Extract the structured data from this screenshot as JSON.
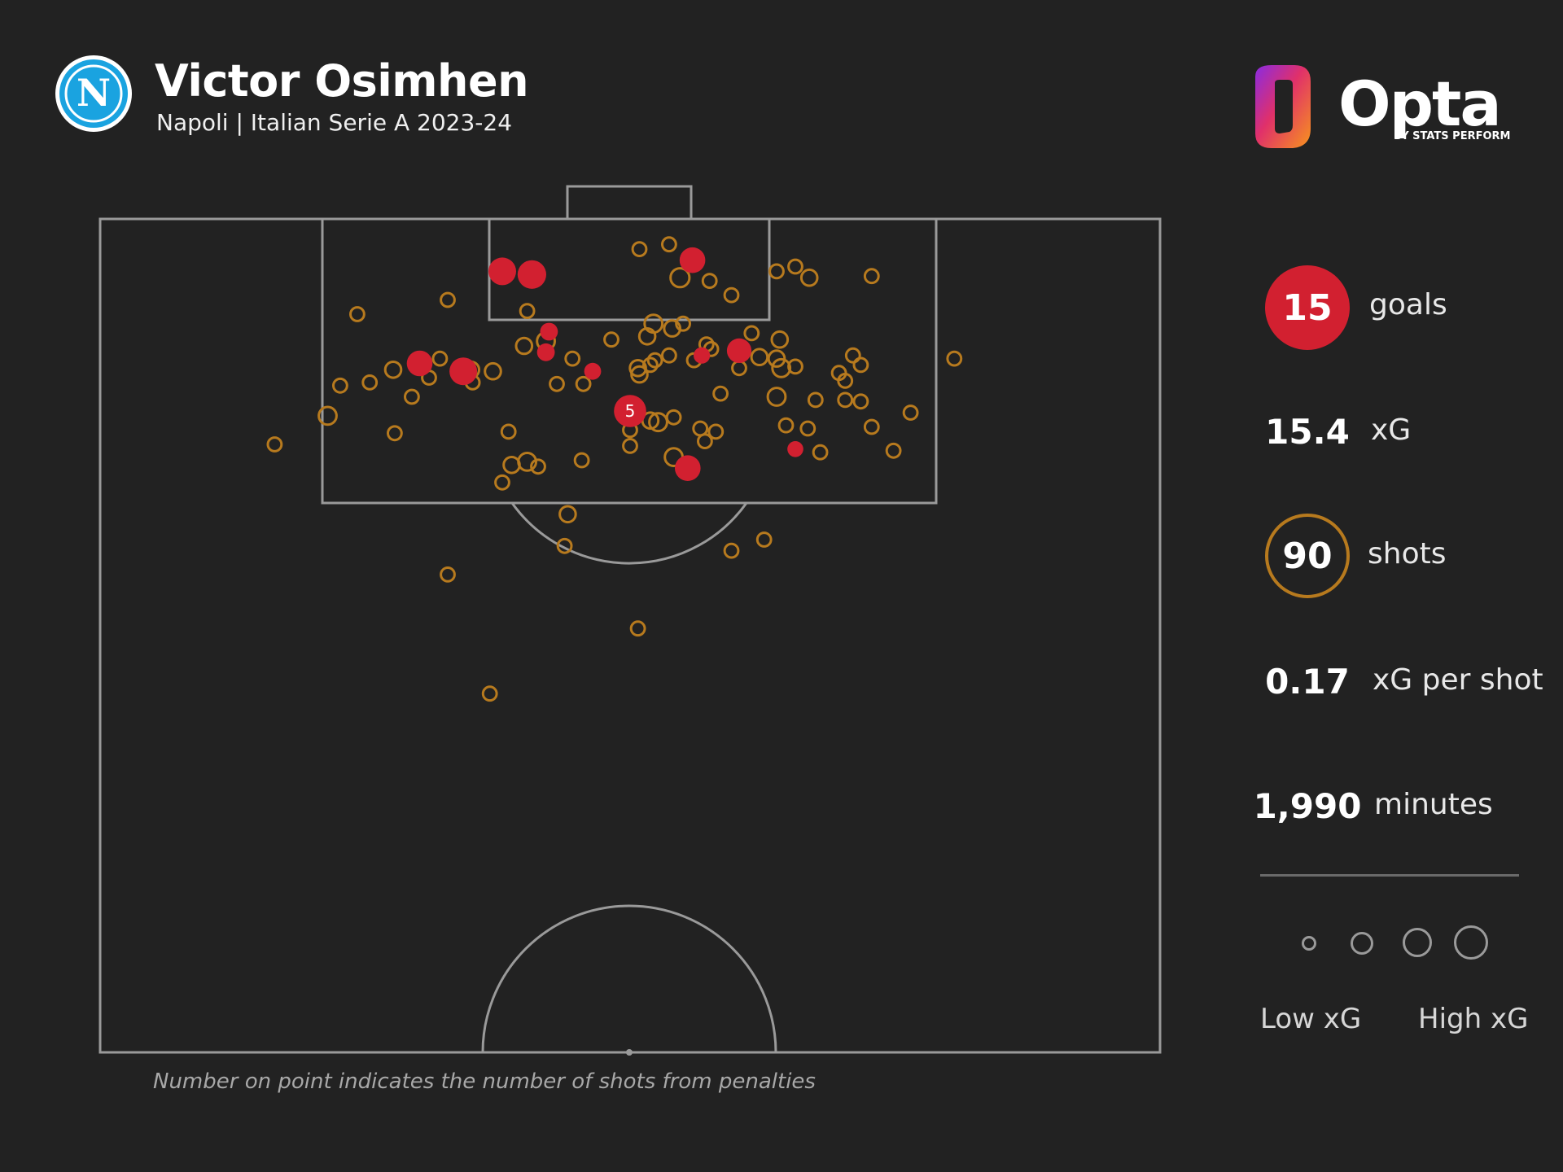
{
  "header": {
    "player": "Victor Osimhen",
    "subtitle": "Napoli | Italian Serie A 2023-24",
    "badge_letter": "N"
  },
  "brand": {
    "name": "Opta",
    "tagline": "BY STATS PERFORM"
  },
  "stats": {
    "goals_value": "15",
    "goals_label": "goals",
    "xg_value": "15.4",
    "xg_label": "xG",
    "shots_value": "90",
    "shots_label": "shots",
    "xg_per_shot_value": "0.17",
    "xg_per_shot_label": "xG per shot",
    "minutes_value": "1,990",
    "minutes_label": "minutes"
  },
  "legend": {
    "low_label": "Low xG",
    "high_label": "High xG"
  },
  "footnote": "Number on point indicates the number of shots from penalties",
  "colors": {
    "background": "#222222",
    "goal": "#d22030",
    "shot": "#b77a1e",
    "pitch_lines": "#9a9a9a",
    "badge": "#1aa3e0"
  },
  "chart_data": {
    "type": "scatter",
    "description_units": "pitch position: x = across pitch width (0-68 m), y = distance from goal line (m); xg = shot expected goals",
    "series": [
      {
        "name": "goals",
        "points": [
          {
            "x": 25.8,
            "y": 3.3,
            "xg": 0.5
          },
          {
            "x": 27.7,
            "y": 3.5,
            "xg": 0.55
          },
          {
            "x": 38.0,
            "y": 2.6,
            "xg": 0.4
          },
          {
            "x": 28.8,
            "y": 7.1,
            "xg": 0.12
          },
          {
            "x": 28.6,
            "y": 8.4,
            "xg": 0.12
          },
          {
            "x": 20.5,
            "y": 9.1,
            "xg": 0.4
          },
          {
            "x": 23.3,
            "y": 9.6,
            "xg": 0.5
          },
          {
            "x": 31.6,
            "y": 9.6,
            "xg": 0.1
          },
          {
            "x": 38.6,
            "y": 8.6,
            "xg": 0.09
          },
          {
            "x": 41.0,
            "y": 8.3,
            "xg": 0.35
          },
          {
            "x": 34.0,
            "y": 12.1,
            "xg": 0.76,
            "penalties": 5
          },
          {
            "x": 37.7,
            "y": 15.7,
            "xg": 0.4
          },
          {
            "x": 44.6,
            "y": 14.5,
            "xg": 0.08
          }
        ]
      },
      {
        "name": "shots",
        "points": [
          {
            "x": 22.3,
            "y": 5.1,
            "xg": 0.04
          },
          {
            "x": 27.4,
            "y": 5.8,
            "xg": 0.04
          },
          {
            "x": 16.5,
            "y": 6.0,
            "xg": 0.04
          },
          {
            "x": 37.2,
            "y": 3.7,
            "xg": 0.15
          },
          {
            "x": 40.5,
            "y": 4.8,
            "xg": 0.04
          },
          {
            "x": 43.4,
            "y": 3.3,
            "xg": 0.04
          },
          {
            "x": 44.6,
            "y": 3.0,
            "xg": 0.04
          },
          {
            "x": 45.5,
            "y": 3.7,
            "xg": 0.08
          },
          {
            "x": 49.5,
            "y": 3.6,
            "xg": 0.04
          },
          {
            "x": 35.5,
            "y": 6.6,
            "xg": 0.12
          },
          {
            "x": 36.7,
            "y": 6.9,
            "xg": 0.08
          },
          {
            "x": 37.4,
            "y": 6.6,
            "xg": 0.04
          },
          {
            "x": 35.1,
            "y": 7.4,
            "xg": 0.08
          },
          {
            "x": 32.8,
            "y": 7.6,
            "xg": 0.04
          },
          {
            "x": 28.6,
            "y": 7.7,
            "xg": 0.12
          },
          {
            "x": 27.2,
            "y": 8.0,
            "xg": 0.08
          },
          {
            "x": 41.8,
            "y": 7.2,
            "xg": 0.04
          },
          {
            "x": 43.6,
            "y": 7.6,
            "xg": 0.08
          },
          {
            "x": 38.9,
            "y": 7.9,
            "xg": 0.04
          },
          {
            "x": 39.2,
            "y": 8.2,
            "xg": 0.04
          },
          {
            "x": 36.5,
            "y": 8.6,
            "xg": 0.04
          },
          {
            "x": 35.6,
            "y": 8.9,
            "xg": 0.04
          },
          {
            "x": 35.3,
            "y": 9.2,
            "xg": 0.04
          },
          {
            "x": 34.5,
            "y": 9.4,
            "xg": 0.08
          },
          {
            "x": 34.6,
            "y": 9.8,
            "xg": 0.08
          },
          {
            "x": 30.3,
            "y": 8.8,
            "xg": 0.04
          },
          {
            "x": 21.8,
            "y": 8.8,
            "xg": 0.04
          },
          {
            "x": 23.8,
            "y": 9.5,
            "xg": 0.08
          },
          {
            "x": 25.2,
            "y": 9.6,
            "xg": 0.08
          },
          {
            "x": 21.1,
            "y": 10.0,
            "xg": 0.04
          },
          {
            "x": 23.9,
            "y": 10.3,
            "xg": 0.04
          },
          {
            "x": 18.8,
            "y": 9.5,
            "xg": 0.08
          },
          {
            "x": 17.3,
            "y": 10.3,
            "xg": 0.04
          },
          {
            "x": 42.3,
            "y": 8.7,
            "xg": 0.08
          },
          {
            "x": 43.4,
            "y": 8.8,
            "xg": 0.08
          },
          {
            "x": 43.7,
            "y": 9.4,
            "xg": 0.12
          },
          {
            "x": 44.6,
            "y": 9.3,
            "xg": 0.04
          },
          {
            "x": 43.4,
            "y": 11.2,
            "xg": 0.12
          },
          {
            "x": 45.9,
            "y": 11.4,
            "xg": 0.04
          },
          {
            "x": 47.4,
            "y": 9.7,
            "xg": 0.04
          },
          {
            "x": 47.8,
            "y": 10.2,
            "xg": 0.04
          },
          {
            "x": 47.8,
            "y": 11.4,
            "xg": 0.04
          },
          {
            "x": 44.0,
            "y": 13.0,
            "xg": 0.04
          },
          {
            "x": 45.4,
            "y": 13.2,
            "xg": 0.04
          },
          {
            "x": 49.5,
            "y": 13.1,
            "xg": 0.04
          },
          {
            "x": 48.8,
            "y": 11.5,
            "xg": 0.04
          },
          {
            "x": 15.4,
            "y": 10.5,
            "xg": 0.04
          },
          {
            "x": 20.0,
            "y": 11.2,
            "xg": 0.04
          },
          {
            "x": 14.6,
            "y": 12.4,
            "xg": 0.12
          },
          {
            "x": 11.2,
            "y": 14.2,
            "xg": 0.04
          },
          {
            "x": 18.9,
            "y": 13.5,
            "xg": 0.04
          },
          {
            "x": 26.2,
            "y": 13.4,
            "xg": 0.04
          },
          {
            "x": 34.0,
            "y": 13.3,
            "xg": 0.04
          },
          {
            "x": 35.8,
            "y": 12.8,
            "xg": 0.12
          },
          {
            "x": 35.3,
            "y": 12.7,
            "xg": 0.08
          },
          {
            "x": 36.8,
            "y": 12.5,
            "xg": 0.04
          },
          {
            "x": 34.0,
            "y": 14.3,
            "xg": 0.04
          },
          {
            "x": 38.5,
            "y": 13.2,
            "xg": 0.04
          },
          {
            "x": 39.5,
            "y": 13.4,
            "xg": 0.04
          },
          {
            "x": 36.8,
            "y": 15.0,
            "xg": 0.12
          },
          {
            "x": 38.8,
            "y": 14.0,
            "xg": 0.04
          },
          {
            "x": 27.4,
            "y": 15.3,
            "xg": 0.12
          },
          {
            "x": 26.4,
            "y": 15.5,
            "xg": 0.08
          },
          {
            "x": 25.8,
            "y": 16.6,
            "xg": 0.04
          },
          {
            "x": 28.1,
            "y": 15.6,
            "xg": 0.04
          },
          {
            "x": 30.9,
            "y": 15.2,
            "xg": 0.04
          },
          {
            "x": 34.6,
            "y": 1.9,
            "xg": 0.04
          },
          {
            "x": 36.5,
            "y": 1.6,
            "xg": 0.04
          },
          {
            "x": 39.1,
            "y": 3.9,
            "xg": 0.04
          },
          {
            "x": 52.0,
            "y": 12.2,
            "xg": 0.04
          },
          {
            "x": 50.9,
            "y": 14.6,
            "xg": 0.04
          },
          {
            "x": 46.2,
            "y": 14.7,
            "xg": 0.04
          },
          {
            "x": 54.8,
            "y": 8.8,
            "xg": 0.04
          },
          {
            "x": 48.3,
            "y": 8.6,
            "xg": 0.04
          },
          {
            "x": 48.8,
            "y": 9.2,
            "xg": 0.04
          },
          {
            "x": 30.0,
            "y": 18.6,
            "xg": 0.08
          },
          {
            "x": 29.8,
            "y": 20.6,
            "xg": 0.04
          },
          {
            "x": 42.6,
            "y": 20.2,
            "xg": 0.04
          },
          {
            "x": 40.5,
            "y": 20.9,
            "xg": 0.04
          },
          {
            "x": 22.3,
            "y": 22.4,
            "xg": 0.04
          },
          {
            "x": 34.5,
            "y": 25.8,
            "xg": 0.04
          },
          {
            "x": 25.0,
            "y": 29.9,
            "xg": 0.04
          },
          {
            "x": 38.1,
            "y": 8.9,
            "xg": 0.04
          },
          {
            "x": 41.0,
            "y": 9.4,
            "xg": 0.04
          },
          {
            "x": 31.0,
            "y": 10.4,
            "xg": 0.04
          },
          {
            "x": 29.3,
            "y": 10.4,
            "xg": 0.04
          },
          {
            "x": 39.8,
            "y": 11.0,
            "xg": 0.04
          }
        ]
      }
    ]
  }
}
